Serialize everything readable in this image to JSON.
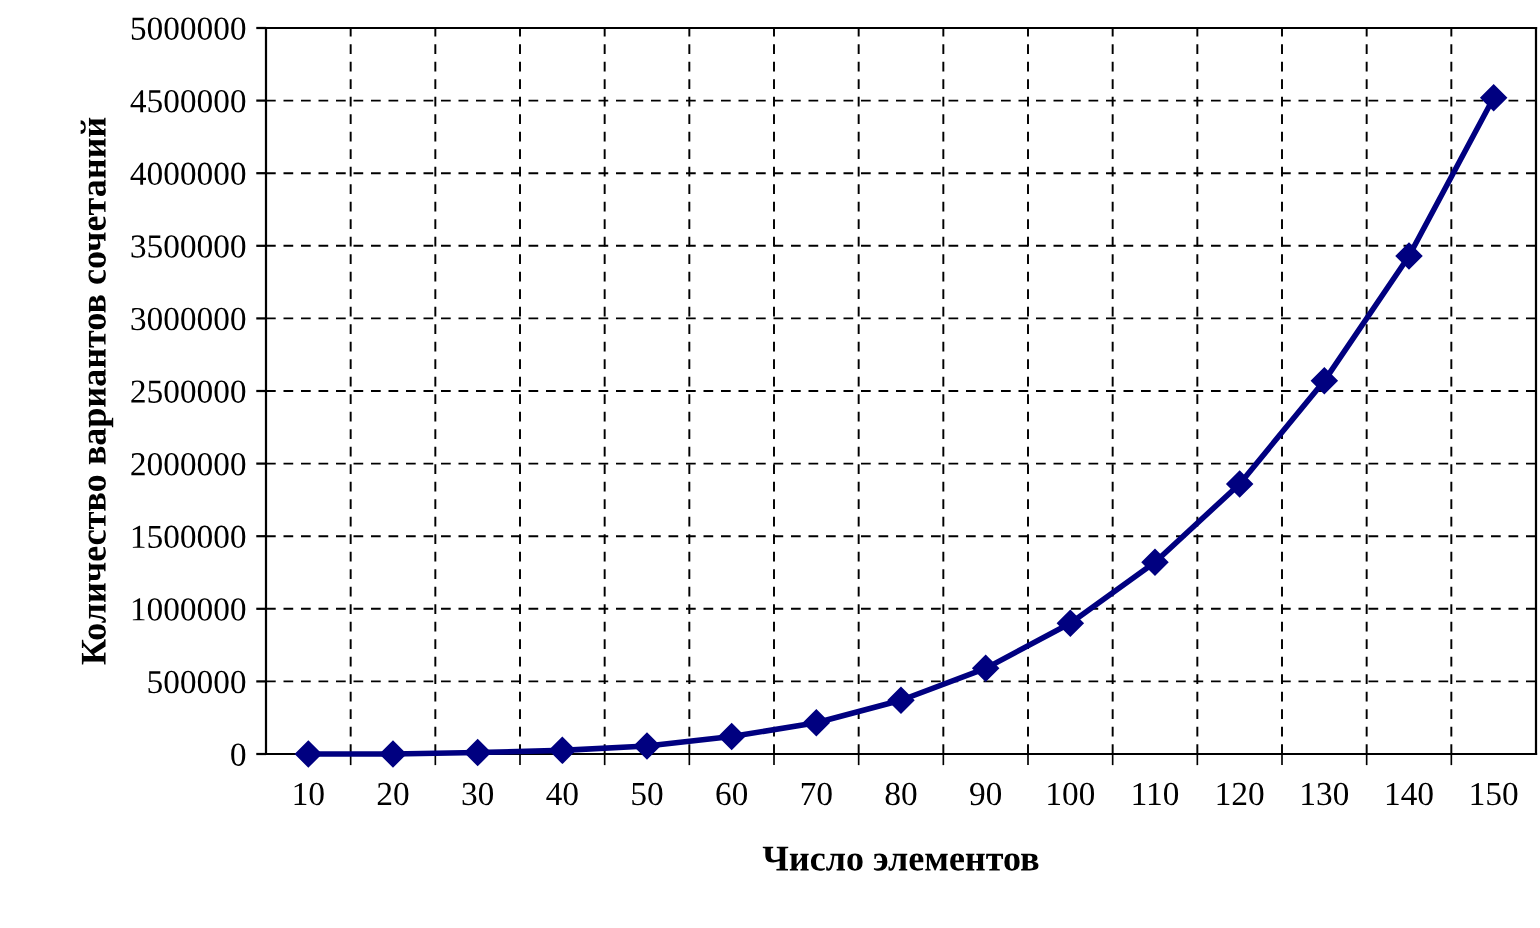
{
  "chart_data": {
    "type": "line",
    "xlabel": "Число элементов",
    "ylabel": "Количество вариантов сочетаний",
    "categories": [
      "10",
      "20",
      "30",
      "40",
      "50",
      "60",
      "70",
      "80",
      "90",
      "100",
      "110",
      "120",
      "130",
      "140",
      "150"
    ],
    "series": [
      {
        "color": "#000080",
        "values": [
          0,
          0,
          10000,
          25000,
          55000,
          120000,
          215000,
          370000,
          590000,
          900000,
          1320000,
          1860000,
          2570000,
          3430000,
          4520000
        ]
      }
    ],
    "ylim": [
      0,
      5000000
    ],
    "yticks": [
      0,
      500000,
      1000000,
      1500000,
      2000000,
      2500000,
      3000000,
      3500000,
      4000000,
      4500000,
      5000000
    ],
    "grid": true,
    "marker": "diamond",
    "line_style": "solid",
    "legend": false
  }
}
